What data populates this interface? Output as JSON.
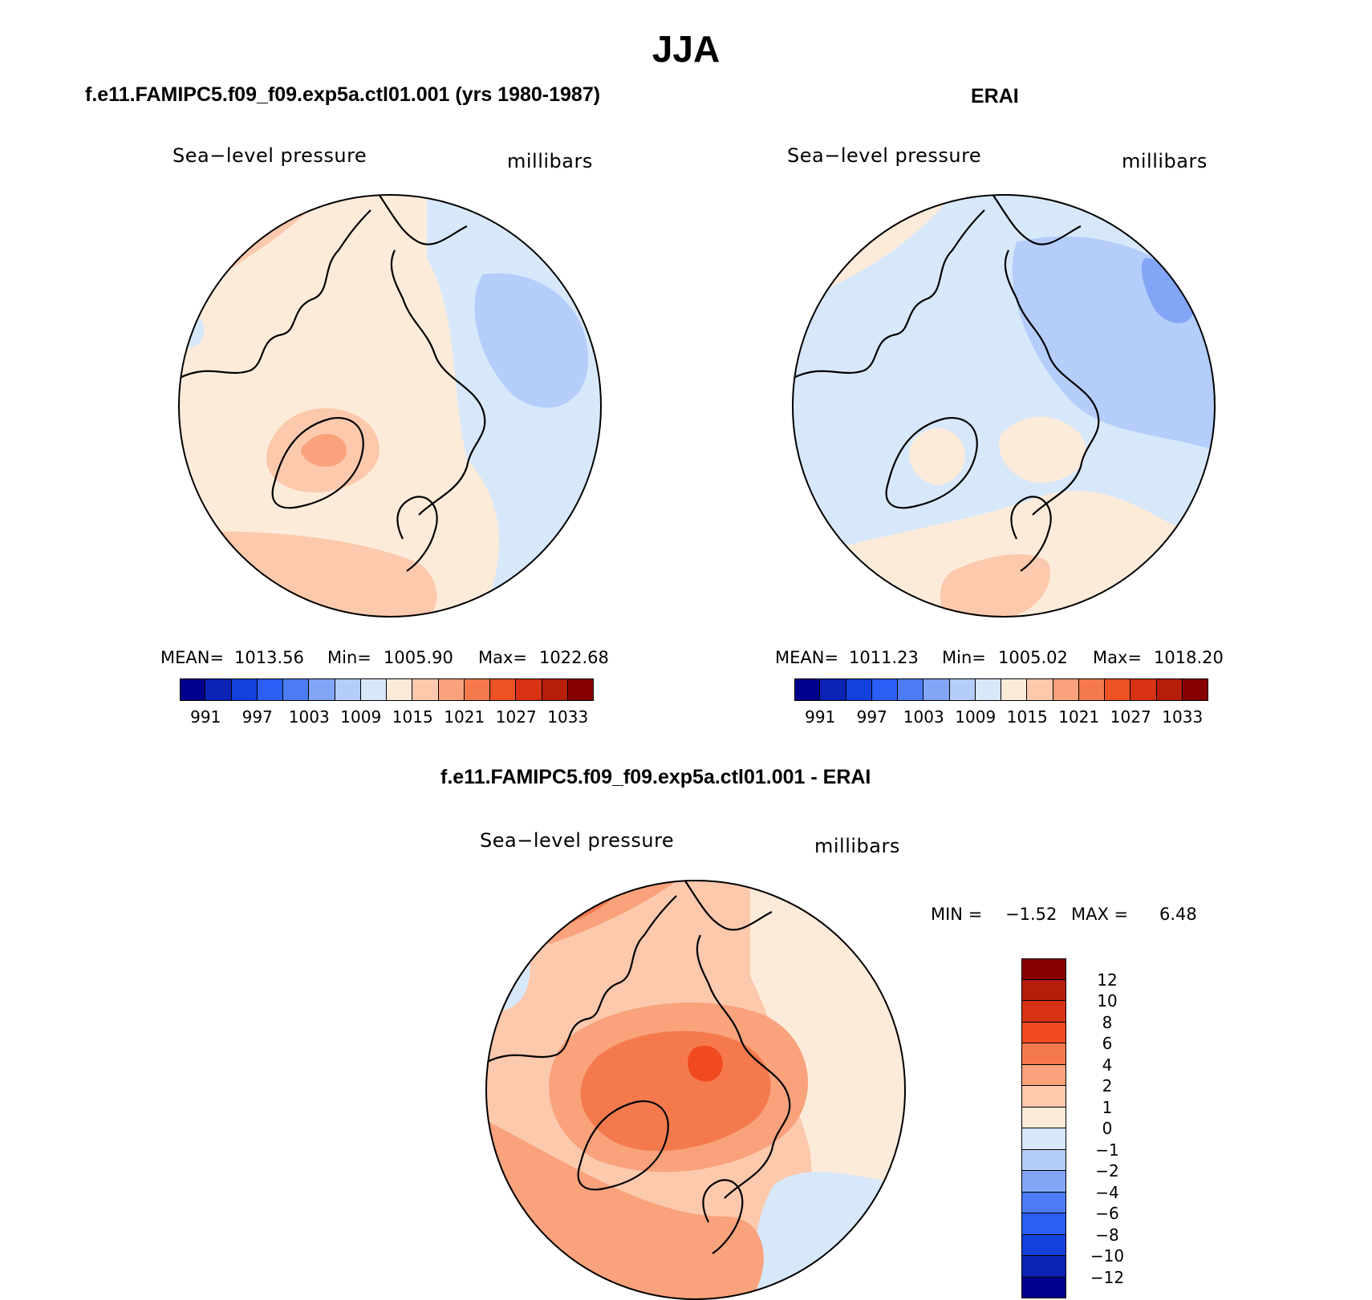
{
  "main_title": "JJA",
  "panels": [
    {
      "title": "f.e11.FAMIPC5.f09_f09.exp5a.ctl01.001 (yrs 1980-1987)",
      "variable": "Sea−level pressure",
      "units": "millibars",
      "stats": {
        "mean_label": "MEAN=",
        "mean": "1013.56",
        "min_label": "Min=",
        "min": "1005.90",
        "max_label": "Max=",
        "max": "1022.68"
      }
    },
    {
      "title": "ERAI",
      "variable": "Sea−level pressure",
      "units": "millibars",
      "stats": {
        "mean_label": "MEAN=",
        "mean": "1011.23",
        "min_label": "Min=",
        "min": "1005.02",
        "max_label": "Max=",
        "max": "1018.20"
      }
    },
    {
      "title": "f.e11.FAMIPC5.f09_f09.exp5a.ctl01.001 - ERAI",
      "variable": "Sea−level pressure",
      "units": "millibars",
      "stats": {
        "min_label": "MIN =",
        "min": "−1.52",
        "max_label": "MAX =",
        "max": "6.48"
      }
    }
  ],
  "chart_data": [
    {
      "type": "heatmap",
      "title": "f.e11.FAMIPC5.f09_f09.exp5a.ctl01.001 (yrs 1980-1987)",
      "variable": "Sea-level pressure",
      "units": "millibars",
      "projection": "north polar stereographic",
      "mean": 1013.56,
      "min": 1005.9,
      "max": 1022.68,
      "colorbar_levels": [
        988,
        991,
        994,
        997,
        1000,
        1003,
        1006,
        1009,
        1012,
        1015,
        1018,
        1021,
        1024,
        1027,
        1030,
        1033
      ],
      "colorbar_tick_labels": [
        "991",
        "997",
        "1003",
        "1009",
        "1015",
        "1021",
        "1027",
        "1033"
      ],
      "colorbar_colors": [
        "#00008c",
        "#0a23b4",
        "#1440dc",
        "#2a5ef5",
        "#4b7bf5",
        "#82a5f5",
        "#b4cdfa",
        "#d7e8fb",
        "#fdebda",
        "#fcc9ad",
        "#f9a27b",
        "#f47a4e",
        "#ec5224",
        "#d73214",
        "#b41e0a",
        "#870000"
      ]
    },
    {
      "type": "heatmap",
      "title": "ERAI",
      "variable": "Sea-level pressure",
      "units": "millibars",
      "projection": "north polar stereographic",
      "mean": 1011.23,
      "min": 1005.02,
      "max": 1018.2,
      "colorbar_levels": [
        988,
        991,
        994,
        997,
        1000,
        1003,
        1006,
        1009,
        1012,
        1015,
        1018,
        1021,
        1024,
        1027,
        1030,
        1033
      ],
      "colorbar_tick_labels": [
        "991",
        "997",
        "1003",
        "1009",
        "1015",
        "1021",
        "1027",
        "1033"
      ],
      "colorbar_colors": [
        "#00008c",
        "#0a23b4",
        "#1440dc",
        "#2a5ef5",
        "#4b7bf5",
        "#82a5f5",
        "#b4cdfa",
        "#d7e8fb",
        "#fdebda",
        "#fcc9ad",
        "#f9a27b",
        "#f47a4e",
        "#ec5224",
        "#d73214",
        "#b41e0a",
        "#870000"
      ]
    },
    {
      "type": "heatmap",
      "title": "f.e11.FAMIPC5.f09_f09.exp5a.ctl01.001 - ERAI",
      "variable": "Sea-level pressure",
      "units": "millibars",
      "projection": "north polar stereographic",
      "min": -1.52,
      "max": 6.48,
      "colorbar_levels": [
        -12,
        -10,
        -8,
        -6,
        -4,
        -2,
        -1,
        0,
        1,
        2,
        4,
        6,
        8,
        10,
        12
      ],
      "colorbar_tick_labels": [
        "12",
        "10",
        "8",
        "6",
        "4",
        "2",
        "1",
        "0",
        "−1",
        "−2",
        "−4",
        "−6",
        "−8",
        "−10",
        "−12"
      ],
      "colorbar_colors_top_to_bottom": [
        "#870000",
        "#b41e0a",
        "#d73214",
        "#f04a1e",
        "#f47a4e",
        "#f9a27b",
        "#fcc9ad",
        "#fdebda",
        "#d7e8fb",
        "#b4cdfa",
        "#82a5f5",
        "#4b7bf5",
        "#2a5ef5",
        "#1440dc",
        "#0a23b4",
        "#00008c"
      ]
    }
  ]
}
